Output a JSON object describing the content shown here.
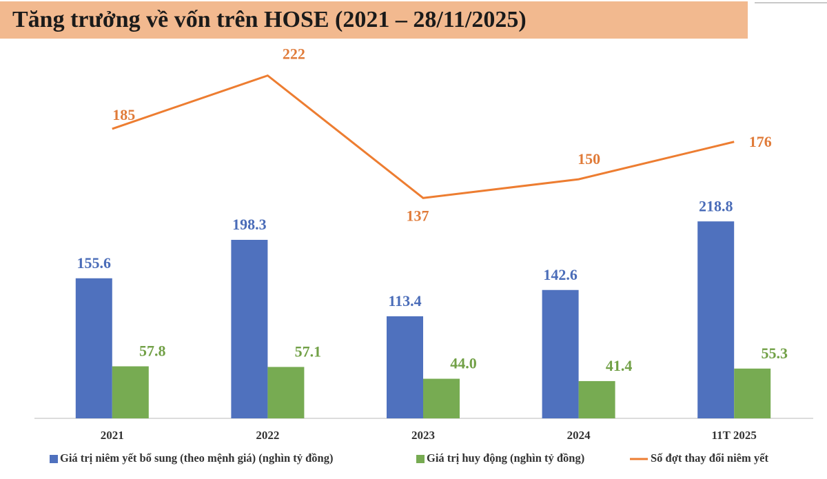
{
  "chart_data": {
    "type": "bar-line",
    "title": "Tăng trưởng về vốn trên HOSE (2021 – 28/11/2025)",
    "categories": [
      "2021",
      "2022",
      "2023",
      "2024",
      "11T 2025"
    ],
    "series": [
      {
        "name": "Giá trị niêm yết bổ sung (theo mệnh giá) (nghìn tỷ đồng)",
        "type": "bar",
        "color": "#4f71be",
        "label_color": "#4a6cb8",
        "values": [
          155.6,
          198.3,
          113.4,
          142.6,
          218.8
        ],
        "value_labels": [
          "155.6",
          "198.3",
          "113.4",
          "142.6",
          "218.8"
        ]
      },
      {
        "name": "Giá trị huy động (nghìn tỷ đồng)",
        "type": "bar",
        "color": "#77ab52",
        "label_color": "#71a046",
        "values": [
          57.8,
          57.1,
          44.0,
          41.4,
          55.3
        ],
        "value_labels": [
          "57.8",
          "57.1",
          "44.0",
          "41.4",
          "55.3"
        ]
      },
      {
        "name": "Số đợt thay đổi niêm yết",
        "type": "line",
        "axis": "y2",
        "color": "#ed7d31",
        "label_color": "#e07b39",
        "values": [
          185,
          222,
          137,
          150,
          176
        ]
      }
    ],
    "ylim": [
      0,
      392
    ],
    "y2lim": [
      -16,
      229
    ],
    "grid": false,
    "legend": "bottom"
  }
}
